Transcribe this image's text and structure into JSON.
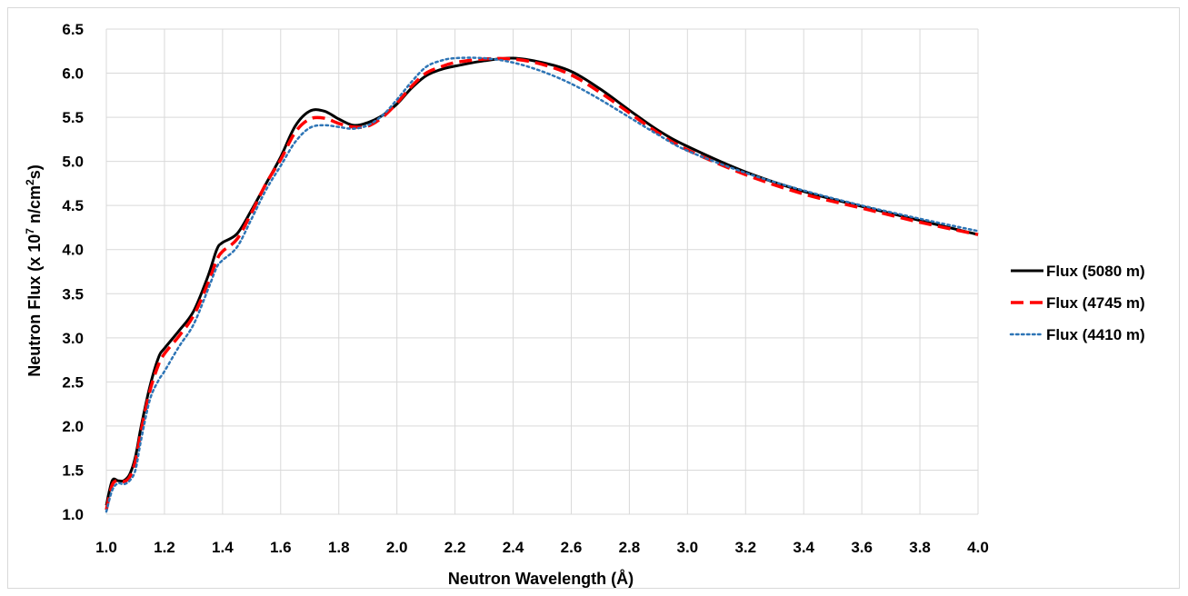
{
  "chart_data": {
    "type": "line",
    "title": "",
    "xlabel": "Neutron Wavelength (Å)",
    "ylabel_prefix": "Neutron Flux (x 10",
    "ylabel_exp": "7",
    "ylabel_mid": " n/cm",
    "ylabel_exp2": "2",
    "ylabel_suffix": "s)",
    "xlim": [
      1.0,
      4.0
    ],
    "ylim": [
      1.0,
      6.5
    ],
    "xticks": [
      "1.0",
      "1.2",
      "1.4",
      "1.6",
      "1.8",
      "2.0",
      "2.2",
      "2.4",
      "2.6",
      "2.8",
      "3.0",
      "3.2",
      "3.4",
      "3.6",
      "3.8",
      "4.0"
    ],
    "yticks": [
      "1.0",
      "1.5",
      "2.0",
      "2.5",
      "3.0",
      "3.5",
      "4.0",
      "4.5",
      "5.0",
      "5.5",
      "6.0",
      "6.5"
    ],
    "grid": true,
    "legend_position": "right",
    "series": [
      {
        "name": "Flux (5080 m)",
        "color": "#000000",
        "style": "solid",
        "x": [
          1.0,
          1.02,
          1.04,
          1.06,
          1.08,
          1.1,
          1.12,
          1.15,
          1.18,
          1.2,
          1.25,
          1.3,
          1.35,
          1.38,
          1.4,
          1.45,
          1.5,
          1.55,
          1.6,
          1.65,
          1.7,
          1.75,
          1.8,
          1.85,
          1.9,
          1.95,
          2.0,
          2.05,
          2.1,
          2.15,
          2.2,
          2.3,
          2.4,
          2.5,
          2.6,
          2.7,
          2.8,
          2.9,
          3.0,
          3.2,
          3.4,
          3.6,
          3.8,
          4.0
        ],
        "y": [
          1.1,
          1.38,
          1.38,
          1.38,
          1.45,
          1.65,
          2.0,
          2.45,
          2.78,
          2.88,
          3.08,
          3.3,
          3.7,
          4.0,
          4.08,
          4.18,
          4.45,
          4.75,
          5.05,
          5.4,
          5.57,
          5.57,
          5.48,
          5.41,
          5.44,
          5.52,
          5.65,
          5.83,
          5.97,
          6.04,
          6.08,
          6.14,
          6.17,
          6.12,
          6.02,
          5.82,
          5.58,
          5.35,
          5.17,
          4.88,
          4.66,
          4.49,
          4.33,
          4.17
        ]
      },
      {
        "name": "Flux (4745 m)",
        "color": "#ff0000",
        "style": "dashed",
        "x": [
          1.0,
          1.02,
          1.04,
          1.06,
          1.08,
          1.1,
          1.12,
          1.15,
          1.18,
          1.2,
          1.25,
          1.3,
          1.35,
          1.38,
          1.4,
          1.45,
          1.5,
          1.55,
          1.6,
          1.65,
          1.7,
          1.75,
          1.8,
          1.85,
          1.9,
          1.95,
          2.0,
          2.05,
          2.1,
          2.15,
          2.2,
          2.3,
          2.4,
          2.5,
          2.6,
          2.7,
          2.8,
          2.9,
          3.0,
          3.2,
          3.4,
          3.6,
          3.8,
          4.0
        ],
        "y": [
          1.05,
          1.33,
          1.38,
          1.37,
          1.42,
          1.6,
          1.95,
          2.4,
          2.7,
          2.82,
          3.02,
          3.25,
          3.62,
          3.88,
          3.98,
          4.12,
          4.42,
          4.75,
          5.02,
          5.33,
          5.48,
          5.49,
          5.43,
          5.39,
          5.4,
          5.5,
          5.66,
          5.85,
          6.0,
          6.07,
          6.12,
          6.16,
          6.16,
          6.1,
          5.98,
          5.78,
          5.55,
          5.32,
          5.13,
          4.85,
          4.63,
          4.47,
          4.31,
          4.17
        ]
      },
      {
        "name": "Flux (4410 m)",
        "color": "#2e75b6",
        "style": "dotted",
        "x": [
          1.0,
          1.02,
          1.04,
          1.06,
          1.08,
          1.1,
          1.12,
          1.15,
          1.18,
          1.2,
          1.25,
          1.3,
          1.35,
          1.38,
          1.4,
          1.45,
          1.5,
          1.55,
          1.6,
          1.65,
          1.7,
          1.75,
          1.8,
          1.85,
          1.9,
          1.95,
          2.0,
          2.05,
          2.1,
          2.15,
          2.2,
          2.3,
          2.4,
          2.5,
          2.6,
          2.7,
          2.8,
          2.9,
          3.0,
          3.2,
          3.4,
          3.6,
          3.8,
          4.0
        ],
        "y": [
          1.03,
          1.27,
          1.35,
          1.34,
          1.38,
          1.5,
          1.85,
          2.3,
          2.52,
          2.62,
          2.9,
          3.15,
          3.55,
          3.8,
          3.88,
          4.03,
          4.35,
          4.68,
          4.95,
          5.22,
          5.38,
          5.41,
          5.39,
          5.37,
          5.41,
          5.52,
          5.7,
          5.9,
          6.07,
          6.14,
          6.17,
          6.17,
          6.12,
          6.02,
          5.88,
          5.7,
          5.5,
          5.3,
          5.12,
          4.87,
          4.67,
          4.5,
          4.35,
          4.21
        ]
      }
    ]
  }
}
